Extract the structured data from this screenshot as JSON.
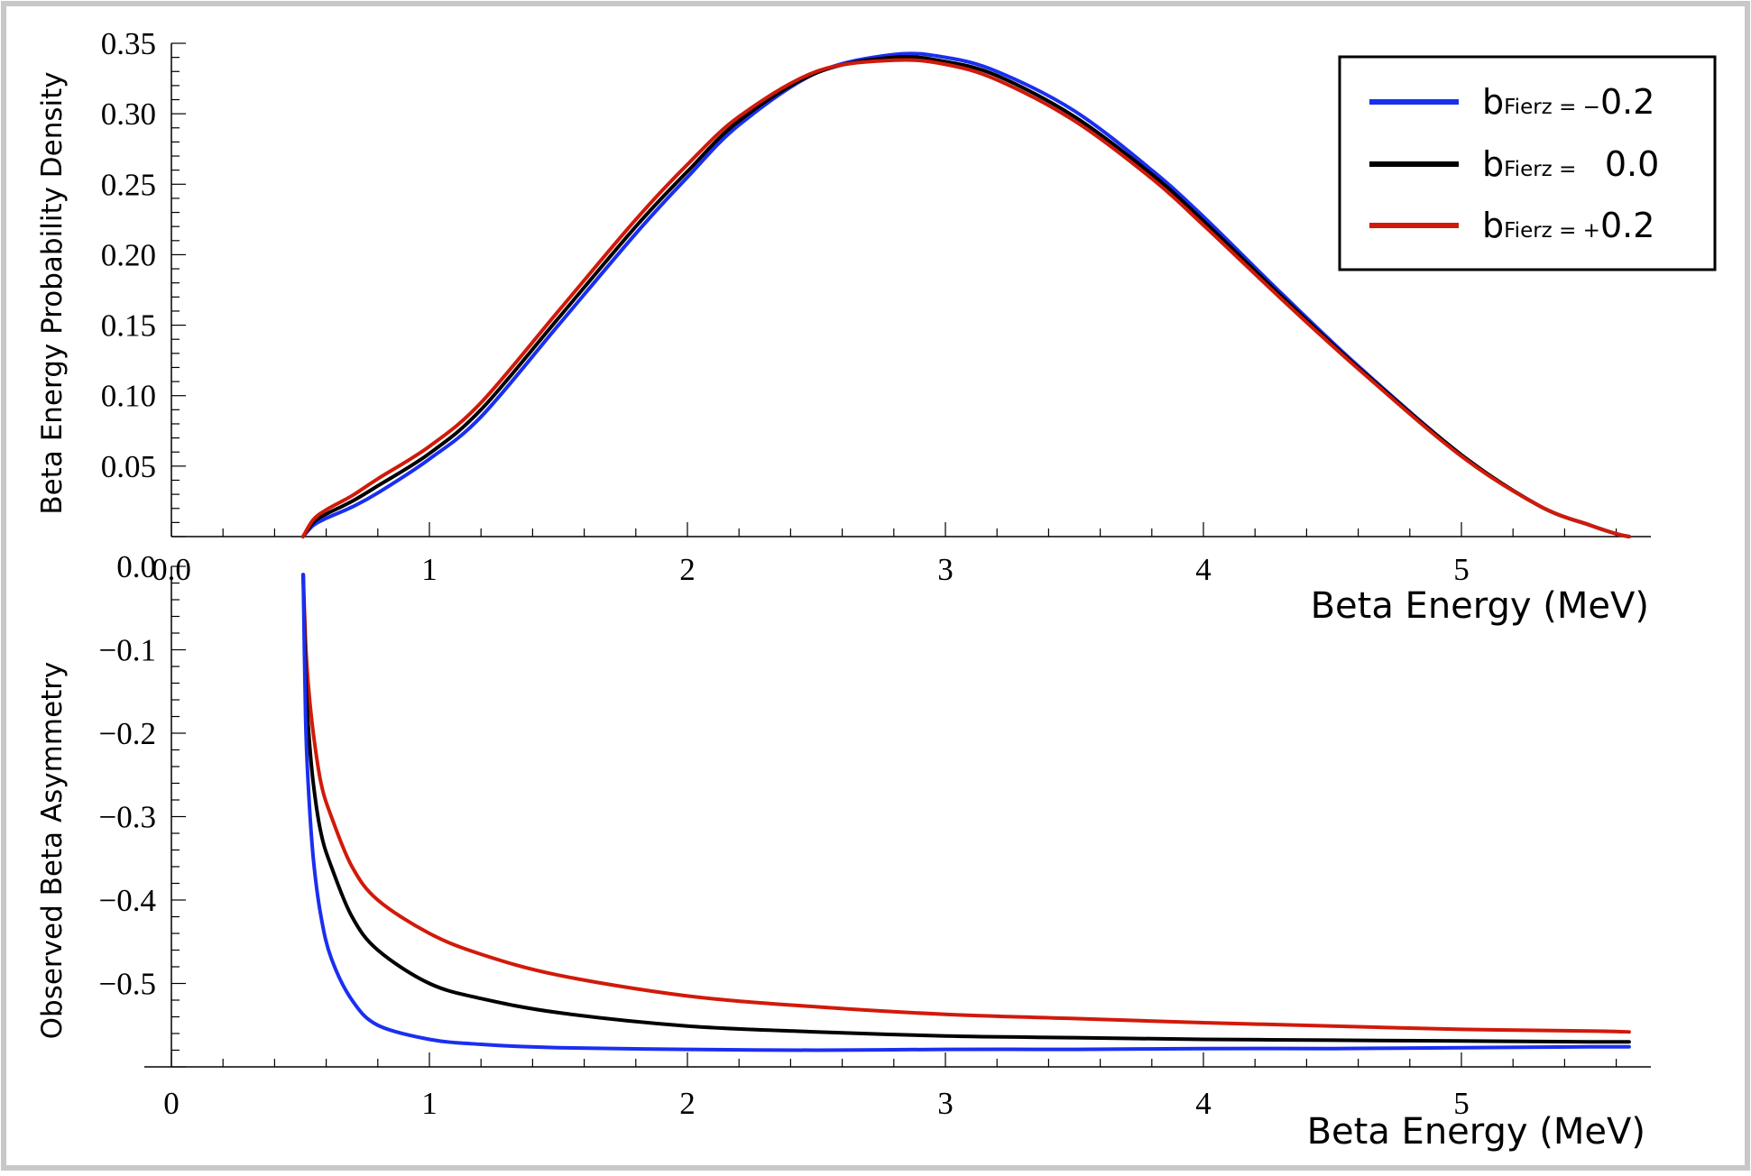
{
  "colors": {
    "neg": "#1a2ff0",
    "zero": "#000000",
    "pos": "#d11a0a",
    "frame": "#c8c8c8"
  },
  "legend": {
    "prefix": "b",
    "items": [
      {
        "sub": "Fierz",
        "eq": " = ",
        "sign": "−",
        "val": "0.2"
      },
      {
        "sub": "Fierz",
        "eq": " = ",
        "sign": "",
        "val": "  0.0"
      },
      {
        "sub": "Fierz",
        "eq": " = ",
        "sign": "+",
        "val": "0.2"
      }
    ]
  },
  "chart_data": [
    {
      "type": "line",
      "xlabel": "Beta Energy (MeV)",
      "ylabel": "Beta Energy Probability Density",
      "xlim": [
        0,
        5.7
      ],
      "ylim": [
        0,
        0.35
      ],
      "xticks": [
        "0.0",
        "1",
        "2",
        "3",
        "4",
        "5"
      ],
      "yticks": [
        "0.05",
        "0.10",
        "0.15",
        "0.20",
        "0.25",
        "0.30",
        "0.35"
      ],
      "series": [
        {
          "key": "neg",
          "x": [
            0.51,
            0.55,
            0.6,
            0.7,
            0.8,
            1.0,
            1.2,
            1.5,
            1.8,
            2.0,
            2.2,
            2.5,
            2.8,
            3.0,
            3.2,
            3.5,
            3.8,
            4.0,
            4.3,
            4.6,
            5.0,
            5.3,
            5.5,
            5.6,
            5.65
          ],
          "y": [
            0.0,
            0.008,
            0.013,
            0.021,
            0.031,
            0.055,
            0.085,
            0.15,
            0.215,
            0.255,
            0.292,
            0.329,
            0.342,
            0.34,
            0.33,
            0.302,
            0.26,
            0.227,
            0.173,
            0.121,
            0.058,
            0.022,
            0.008,
            0.002,
            0.0
          ]
        },
        {
          "key": "zero",
          "x": [
            0.51,
            0.55,
            0.6,
            0.7,
            0.8,
            1.0,
            1.2,
            1.5,
            1.8,
            2.0,
            2.2,
            2.5,
            2.8,
            3.0,
            3.2,
            3.5,
            3.8,
            4.0,
            4.3,
            4.6,
            5.0,
            5.3,
            5.5,
            5.6,
            5.65
          ],
          "y": [
            0.0,
            0.01,
            0.016,
            0.025,
            0.036,
            0.059,
            0.09,
            0.155,
            0.22,
            0.259,
            0.295,
            0.329,
            0.34,
            0.337,
            0.327,
            0.298,
            0.257,
            0.224,
            0.171,
            0.12,
            0.058,
            0.022,
            0.008,
            0.002,
            0.0
          ]
        },
        {
          "key": "pos",
          "x": [
            0.51,
            0.55,
            0.6,
            0.7,
            0.8,
            1.0,
            1.2,
            1.5,
            1.8,
            2.0,
            2.2,
            2.5,
            2.8,
            3.0,
            3.2,
            3.5,
            3.8,
            4.0,
            4.3,
            4.6,
            5.0,
            5.3,
            5.5,
            5.6,
            5.65
          ],
          "y": [
            0.0,
            0.012,
            0.019,
            0.029,
            0.041,
            0.064,
            0.095,
            0.16,
            0.225,
            0.264,
            0.298,
            0.33,
            0.338,
            0.335,
            0.324,
            0.295,
            0.254,
            0.221,
            0.169,
            0.119,
            0.057,
            0.022,
            0.008,
            0.002,
            0.0
          ]
        }
      ]
    },
    {
      "type": "line",
      "xlabel": "Beta Energy (MeV)",
      "ylabel": "Observed Beta Asymmetry",
      "xlim": [
        0,
        5.7
      ],
      "ylim": [
        -0.6,
        0.0
      ],
      "xticks": [
        "0",
        "1",
        "2",
        "3",
        "4",
        "5"
      ],
      "yticks": [
        "0.0",
        "−0.1",
        "−0.2",
        "−0.3",
        "−0.4",
        "−0.5"
      ],
      "series": [
        {
          "key": "pos",
          "x": [
            0.511,
            0.52,
            0.53,
            0.55,
            0.58,
            0.62,
            0.7,
            0.8,
            1.0,
            1.2,
            1.5,
            2.0,
            2.5,
            3.0,
            3.5,
            4.0,
            4.5,
            5.0,
            5.5,
            5.65
          ],
          "y": [
            -0.01,
            -0.09,
            -0.14,
            -0.2,
            -0.26,
            -0.3,
            -0.36,
            -0.4,
            -0.44,
            -0.465,
            -0.49,
            -0.515,
            -0.528,
            -0.537,
            -0.542,
            -0.547,
            -0.551,
            -0.555,
            -0.557,
            -0.558
          ]
        },
        {
          "key": "zero",
          "x": [
            0.511,
            0.52,
            0.53,
            0.55,
            0.58,
            0.62,
            0.7,
            0.8,
            1.0,
            1.2,
            1.5,
            2.0,
            2.5,
            3.0,
            3.5,
            4.0,
            4.5,
            5.0,
            5.5,
            5.65
          ],
          "y": [
            -0.01,
            -0.13,
            -0.19,
            -0.26,
            -0.32,
            -0.36,
            -0.42,
            -0.46,
            -0.5,
            -0.518,
            -0.535,
            -0.551,
            -0.558,
            -0.563,
            -0.565,
            -0.567,
            -0.568,
            -0.569,
            -0.57,
            -0.57
          ]
        },
        {
          "key": "neg",
          "x": [
            0.511,
            0.52,
            0.53,
            0.55,
            0.58,
            0.62,
            0.7,
            0.8,
            1.0,
            1.2,
            1.5,
            2.0,
            2.5,
            3.0,
            3.5,
            4.0,
            4.5,
            5.0,
            5.5,
            5.65
          ],
          "y": [
            -0.01,
            -0.18,
            -0.26,
            -0.35,
            -0.42,
            -0.47,
            -0.52,
            -0.55,
            -0.567,
            -0.573,
            -0.577,
            -0.579,
            -0.58,
            -0.579,
            -0.579,
            -0.578,
            -0.578,
            -0.577,
            -0.576,
            -0.576
          ]
        }
      ]
    }
  ]
}
